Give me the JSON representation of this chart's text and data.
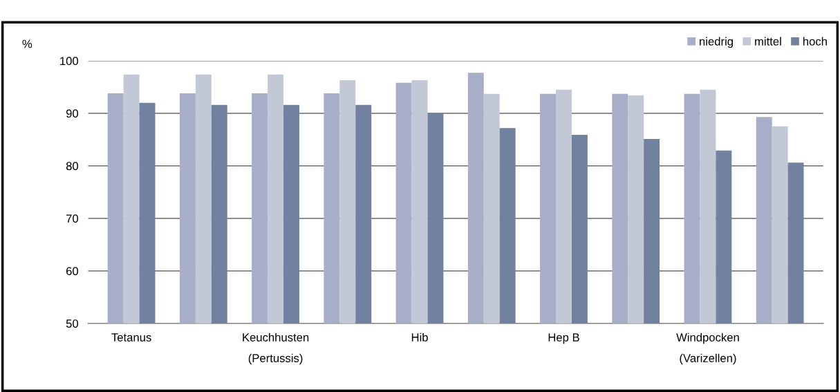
{
  "chart_data": {
    "type": "bar",
    "ylabel": "%",
    "categories": [
      "Tetanus",
      null,
      "Keuchhusten\n(Pertussis)",
      null,
      "Hib",
      null,
      "Hep B",
      null,
      "Windpocken\n(Varizellen)",
      null
    ],
    "series": [
      {
        "name": "niedrig",
        "color": "#a9aec8",
        "values": [
          93.8,
          93.8,
          93.8,
          93.8,
          95.8,
          97.7,
          93.7,
          93.7,
          93.7,
          89.3
        ]
      },
      {
        "name": "mittel",
        "color": "#c2c8d6",
        "values": [
          97.4,
          97.4,
          97.4,
          96.3,
          96.3,
          93.7,
          94.5,
          93.4,
          94.5,
          87.5
        ]
      },
      {
        "name": "hoch",
        "color": "#72819f",
        "values": [
          92,
          91.6,
          91.6,
          91.6,
          90,
          87.2,
          85.9,
          85.1,
          82.9,
          80.6
        ]
      }
    ],
    "ylim": [
      50,
      100
    ],
    "yticks": [
      50,
      60,
      70,
      80,
      90,
      100
    ],
    "grid": "y",
    "legend": "top right"
  }
}
